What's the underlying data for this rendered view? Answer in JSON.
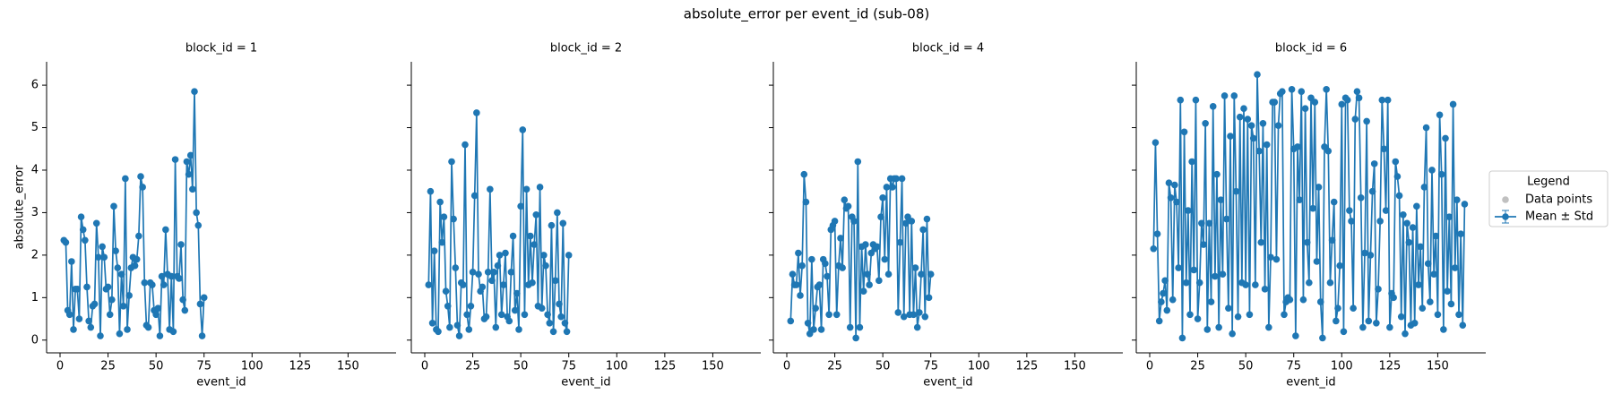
{
  "title": "absolute_error per event_id (sub-08)",
  "legend": {
    "title": "Legend",
    "location": "right",
    "entries": [
      {
        "label": "Data points",
        "color": "#b0b0b0"
      },
      {
        "label": "Mean ± Std",
        "color": "#1f77b4"
      }
    ]
  },
  "chart_data": [
    {
      "type": "line",
      "title": "block_id = 1",
      "xlabel": "event_id",
      "ylabel": "absolute_error",
      "color": "#1f77b4",
      "xlim": [
        -7,
        175
      ],
      "ylim": [
        -0.3,
        6.55
      ],
      "xticks": [
        0,
        25,
        50,
        75,
        100,
        125,
        150
      ],
      "yticks": [
        0,
        1,
        2,
        3,
        4,
        5,
        6
      ],
      "ytick_labels": true,
      "x": [
        2,
        3,
        4,
        5,
        6,
        7,
        8,
        9,
        10,
        11,
        12,
        13,
        14,
        15,
        16,
        17,
        18,
        19,
        20,
        21,
        22,
        23,
        24,
        25,
        26,
        27,
        28,
        29,
        30,
        31,
        32,
        33,
        34,
        35,
        36,
        37,
        38,
        39,
        40,
        41,
        42,
        43,
        44,
        45,
        46,
        47,
        48,
        49,
        50,
        51,
        52,
        53,
        54,
        55,
        56,
        57,
        58,
        59,
        60,
        61,
        62,
        63,
        64,
        65,
        66,
        67,
        68,
        69,
        70,
        71,
        72,
        73,
        74,
        75
      ],
      "values": [
        2.35,
        2.3,
        0.7,
        0.6,
        1.85,
        0.25,
        1.2,
        1.2,
        0.5,
        2.9,
        2.6,
        2.35,
        1.25,
        0.45,
        0.3,
        0.8,
        0.85,
        2.75,
        1.95,
        0.1,
        2.2,
        1.95,
        1.2,
        1.25,
        0.6,
        0.95,
        3.15,
        2.1,
        1.7,
        0.15,
        1.55,
        0.8,
        3.8,
        0.25,
        1.05,
        1.7,
        1.95,
        1.75,
        1.9,
        2.45,
        3.85,
        3.6,
        1.35,
        0.35,
        0.3,
        1.35,
        1.3,
        0.7,
        0.6,
        0.75,
        0.1,
        1.5,
        1.3,
        2.6,
        1.55,
        0.25,
        1.5,
        0.2,
        4.25,
        1.5,
        1.45,
        2.25,
        0.95,
        0.7,
        4.2,
        3.9,
        4.35,
        3.55,
        5.85,
        3.0,
        2.7,
        0.85,
        0.1,
        1.0
      ]
    },
    {
      "type": "line",
      "title": "block_id = 2",
      "xlabel": "event_id",
      "color": "#1f77b4",
      "xlim": [
        -7,
        175
      ],
      "ylim": [
        -0.3,
        6.55
      ],
      "xticks": [
        0,
        25,
        50,
        75,
        100,
        125,
        150
      ],
      "yticks": [
        0,
        1,
        2,
        3,
        4,
        5,
        6
      ],
      "ytick_labels": false,
      "x": [
        2,
        3,
        4,
        5,
        6,
        7,
        8,
        9,
        10,
        11,
        12,
        13,
        14,
        15,
        16,
        17,
        18,
        19,
        20,
        21,
        22,
        23,
        24,
        25,
        26,
        27,
        28,
        29,
        30,
        31,
        32,
        33,
        34,
        35,
        36,
        37,
        38,
        39,
        40,
        41,
        42,
        43,
        44,
        45,
        46,
        47,
        48,
        49,
        50,
        51,
        52,
        53,
        54,
        55,
        56,
        57,
        58,
        59,
        60,
        61,
        62,
        63,
        64,
        65,
        66,
        67,
        68,
        69,
        70,
        71,
        72,
        73,
        74,
        75
      ],
      "values": [
        1.3,
        3.5,
        0.4,
        2.1,
        0.25,
        0.2,
        3.25,
        2.3,
        2.9,
        1.15,
        0.8,
        0.3,
        4.2,
        2.85,
        1.7,
        0.35,
        0.1,
        1.35,
        1.3,
        4.6,
        0.6,
        0.25,
        0.8,
        1.6,
        3.4,
        5.35,
        1.55,
        1.15,
        1.25,
        0.5,
        0.55,
        1.6,
        3.55,
        1.4,
        1.6,
        0.3,
        1.75,
        2.0,
        0.6,
        1.3,
        2.05,
        0.55,
        0.45,
        1.6,
        2.45,
        0.7,
        1.1,
        0.25,
        3.15,
        4.95,
        0.6,
        3.55,
        1.3,
        2.45,
        1.35,
        2.25,
        2.95,
        0.8,
        3.6,
        0.75,
        2.0,
        1.75,
        0.6,
        0.4,
        2.7,
        0.2,
        1.4,
        3.0,
        0.85,
        0.55,
        2.75,
        0.4,
        0.2,
        2.0
      ]
    },
    {
      "type": "line",
      "title": "block_id = 4",
      "xlabel": "event_id",
      "color": "#1f77b4",
      "xlim": [
        -7,
        175
      ],
      "ylim": [
        -0.3,
        6.55
      ],
      "xticks": [
        0,
        25,
        50,
        75,
        100,
        125,
        150
      ],
      "yticks": [
        0,
        1,
        2,
        3,
        4,
        5,
        6
      ],
      "ytick_labels": false,
      "x": [
        2,
        3,
        4,
        5,
        6,
        7,
        8,
        9,
        10,
        11,
        12,
        13,
        14,
        15,
        16,
        17,
        18,
        19,
        20,
        21,
        22,
        23,
        24,
        25,
        26,
        27,
        28,
        29,
        30,
        31,
        32,
        33,
        34,
        35,
        36,
        37,
        38,
        39,
        40,
        41,
        42,
        43,
        44,
        45,
        46,
        47,
        48,
        49,
        50,
        51,
        52,
        53,
        54,
        55,
        56,
        57,
        58,
        59,
        60,
        61,
        62,
        63,
        64,
        65,
        66,
        67,
        68,
        69,
        70,
        71,
        72,
        73,
        74,
        75
      ],
      "values": [
        0.45,
        1.55,
        1.3,
        1.3,
        2.05,
        1.05,
        1.75,
        3.9,
        3.25,
        0.4,
        0.15,
        1.9,
        0.25,
        0.75,
        1.25,
        1.3,
        0.25,
        1.9,
        1.8,
        1.5,
        0.6,
        2.6,
        2.7,
        2.8,
        0.6,
        1.75,
        2.4,
        1.7,
        3.3,
        3.1,
        3.15,
        0.3,
        2.9,
        2.8,
        0.05,
        4.2,
        0.3,
        2.2,
        1.15,
        2.25,
        1.55,
        1.3,
        2.05,
        2.25,
        2.15,
        2.2,
        1.4,
        2.9,
        3.35,
        1.9,
        3.6,
        1.55,
        3.8,
        3.6,
        3.8,
        3.8,
        0.65,
        2.3,
        3.8,
        0.55,
        2.75,
        2.9,
        0.6,
        2.8,
        0.6,
        1.7,
        0.3,
        0.65,
        1.55,
        2.6,
        0.55,
        2.85,
        1.0,
        1.55
      ]
    },
    {
      "type": "line",
      "title": "block_id = 6",
      "xlabel": "event_id",
      "color": "#1f77b4",
      "xlim": [
        -7,
        175
      ],
      "ylim": [
        -0.3,
        6.55
      ],
      "xticks": [
        0,
        25,
        50,
        75,
        100,
        125,
        150
      ],
      "yticks": [
        0,
        1,
        2,
        3,
        4,
        5,
        6
      ],
      "ytick_labels": false,
      "x": [
        2,
        3,
        4,
        5,
        6,
        7,
        8,
        9,
        10,
        11,
        12,
        13,
        14,
        15,
        16,
        17,
        18,
        19,
        20,
        21,
        22,
        23,
        24,
        25,
        26,
        27,
        28,
        29,
        30,
        31,
        32,
        33,
        34,
        35,
        36,
        37,
        38,
        39,
        40,
        41,
        42,
        43,
        44,
        45,
        46,
        47,
        48,
        49,
        50,
        51,
        52,
        53,
        54,
        55,
        56,
        57,
        58,
        59,
        60,
        61,
        62,
        63,
        64,
        65,
        66,
        67,
        68,
        69,
        70,
        71,
        72,
        73,
        74,
        75,
        76,
        77,
        78,
        79,
        80,
        81,
        82,
        83,
        84,
        85,
        86,
        87,
        88,
        89,
        90,
        91,
        92,
        93,
        94,
        95,
        96,
        97,
        98,
        99,
        100,
        101,
        102,
        103,
        104,
        105,
        106,
        107,
        108,
        109,
        110,
        111,
        112,
        113,
        114,
        115,
        116,
        117,
        118,
        119,
        120,
        121,
        122,
        123,
        124,
        125,
        126,
        127,
        128,
        129,
        130,
        131,
        132,
        133,
        134,
        135,
        136,
        137,
        138,
        139,
        140,
        141,
        142,
        143,
        144,
        145,
        146,
        147,
        148,
        149,
        150,
        151,
        152,
        153,
        154,
        155,
        156,
        157,
        158,
        159,
        160,
        161,
        162,
        163,
        164
      ],
      "values": [
        2.15,
        4.65,
        2.5,
        0.45,
        0.9,
        1.1,
        1.4,
        0.7,
        3.7,
        3.35,
        0.95,
        3.65,
        3.25,
        1.7,
        5.65,
        0.05,
        4.9,
        1.35,
        3.05,
        0.6,
        4.2,
        1.65,
        5.65,
        0.5,
        1.35,
        2.75,
        2.25,
        5.1,
        0.25,
        2.75,
        0.9,
        5.5,
        1.5,
        3.9,
        0.3,
        3.3,
        1.55,
        5.75,
        2.85,
        0.75,
        4.8,
        0.15,
        5.75,
        3.5,
        0.55,
        5.25,
        1.35,
        5.45,
        1.3,
        5.2,
        0.6,
        5.05,
        4.75,
        1.3,
        6.25,
        4.45,
        2.3,
        5.1,
        1.2,
        4.6,
        0.3,
        1.95,
        5.6,
        5.6,
        1.9,
        5.05,
        5.8,
        5.85,
        0.6,
        0.9,
        1.0,
        0.95,
        5.9,
        4.5,
        0.1,
        4.55,
        3.3,
        5.85,
        0.95,
        5.45,
        2.3,
        1.35,
        5.7,
        3.1,
        5.6,
        1.85,
        3.6,
        0.9,
        0.05,
        4.55,
        5.9,
        4.45,
        1.35,
        2.35,
        3.25,
        0.45,
        0.75,
        1.75,
        5.55,
        0.2,
        5.7,
        5.65,
        3.05,
        2.8,
        0.75,
        5.2,
        5.85,
        5.7,
        3.35,
        0.3,
        2.05,
        5.15,
        0.45,
        2.0,
        3.5,
        4.15,
        0.4,
        1.2,
        2.8,
        5.65,
        4.5,
        3.05,
        5.65,
        0.3,
        1.1,
        1.0,
        4.2,
        3.85,
        3.4,
        0.55,
        2.95,
        0.15,
        2.75,
        2.3,
        0.35,
        2.65,
        0.4,
        3.15,
        1.3,
        2.2,
        0.75,
        3.6,
        5.0,
        1.8,
        0.9,
        4.0,
        1.55,
        2.45,
        0.6,
        5.3,
        3.9,
        0.25,
        4.75,
        1.15,
        2.9,
        0.85,
        5.55,
        1.7,
        3.3,
        0.6,
        2.5,
        0.35,
        3.2
      ]
    }
  ]
}
